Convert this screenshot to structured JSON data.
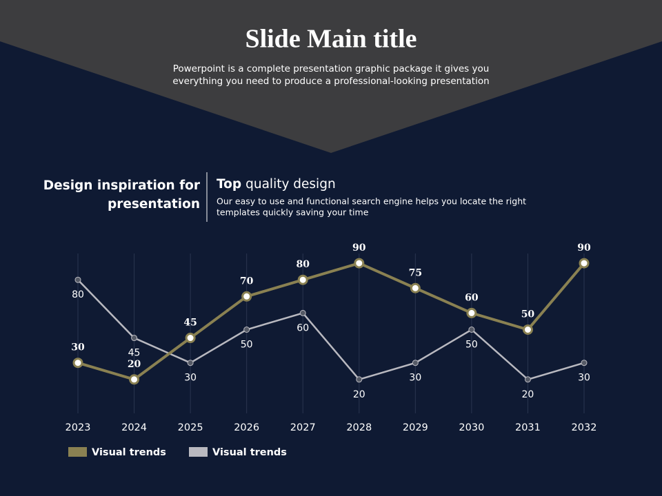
{
  "slide": {
    "title": "Slide Main title",
    "subtitle": [
      "Powerpoint is a complete presentation graphic package it gives you",
      "everything you need to produce a professional-looking presentation"
    ],
    "heading": [
      "Design inspiration for",
      "presentation"
    ],
    "tagline_bold": "Top",
    "tagline": "quality design",
    "description": [
      "Our easy to use and functional search engine helps you locate the right",
      "templates quickly saving your time"
    ]
  },
  "chart_data": {
    "type": "line",
    "categories": [
      "2023",
      "2024",
      "2025",
      "2026",
      "2027",
      "2028",
      "2029",
      "2030",
      "2031",
      "2032"
    ],
    "series": [
      {
        "name": "Visual trends",
        "color": "#8a8152",
        "values": [
          30,
          20,
          45,
          70,
          80,
          90,
          75,
          60,
          50,
          90
        ]
      },
      {
        "name": "Visual trends",
        "color": "#b9b9c0",
        "values": [
          80,
          45,
          30,
          50,
          60,
          20,
          30,
          50,
          20,
          30
        ]
      }
    ],
    "ylim": [
      0,
      100
    ],
    "grid": true
  }
}
